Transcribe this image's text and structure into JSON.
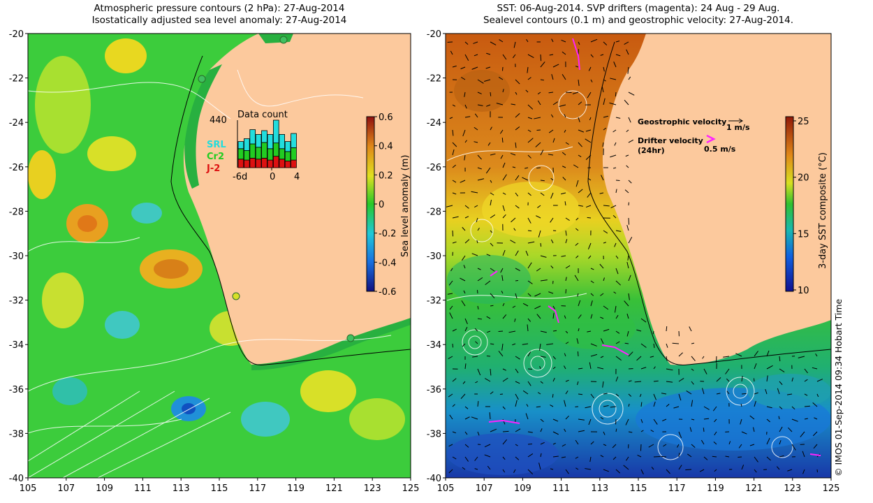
{
  "left_panel": {
    "title_line1": "Atmospheric pressure contours (2 hPa): 27-Aug-2014",
    "title_line2": "Isostatically adjusted sea level anomaly: 27-Aug-2014",
    "colorbar_label": "Sea level anomaly (m)",
    "colorbar_ticks": [
      "0.6",
      "0.4",
      "0.2",
      "0",
      "-0.2",
      "-0.4",
      "-0.6"
    ],
    "inset": {
      "title": "Data count",
      "max_label": "440",
      "x_ticks": [
        "-6d",
        "0",
        "4"
      ],
      "legend": [
        {
          "label": "SRL",
          "color": "#22dddd"
        },
        {
          "label": "Cr2",
          "color": "#22cc22"
        },
        {
          "label": "J-2",
          "color": "#dd1111"
        }
      ],
      "bars": [
        {
          "j2": 0.18,
          "cr2": 0.22,
          "srl": 0.15
        },
        {
          "j2": 0.16,
          "cr2": 0.2,
          "srl": 0.25
        },
        {
          "j2": 0.2,
          "cr2": 0.3,
          "srl": 0.3
        },
        {
          "j2": 0.18,
          "cr2": 0.25,
          "srl": 0.27
        },
        {
          "j2": 0.2,
          "cr2": 0.33,
          "srl": 0.25
        },
        {
          "j2": 0.16,
          "cr2": 0.24,
          "srl": 0.3
        },
        {
          "j2": 0.24,
          "cr2": 0.28,
          "srl": 0.48
        },
        {
          "j2": 0.18,
          "cr2": 0.22,
          "srl": 0.3
        },
        {
          "j2": 0.14,
          "cr2": 0.2,
          "srl": 0.21
        },
        {
          "j2": 0.16,
          "cr2": 0.26,
          "srl": 0.3
        }
      ]
    }
  },
  "right_panel": {
    "title_line1": "SST: 06-Aug-2014. SVP drifters (magenta): 24 Aug - 29 Aug.",
    "title_line2": "Sealevel contours (0.1 m) and geostrophic velocity: 27-Aug-2014.",
    "colorbar_label": "3-day SST composite (°C)",
    "colorbar_ticks": [
      "25",
      "20",
      "15",
      "10"
    ],
    "legend": {
      "geostrophic": "Geostrophic velocity",
      "geo_scale": "1 m/s",
      "drifter_line1": "Drifter velocity",
      "drifter_line2": "(24hr)",
      "drifter_scale": "0.5 m/s"
    }
  },
  "axes": {
    "y_ticks": [
      "-20",
      "-22",
      "-24",
      "-26",
      "-28",
      "-30",
      "-32",
      "-34",
      "-36",
      "-38",
      "-40"
    ],
    "x_ticks": [
      "105",
      "107",
      "109",
      "111",
      "113",
      "115",
      "117",
      "119",
      "121",
      "123",
      "125"
    ]
  },
  "credit": "© IMOS 01-Sep-2014 09:34 Hobart Time",
  "colors": {
    "land": "#fcc99d",
    "ocean_green": "#3ccc3c",
    "warm": "#d27a19",
    "accent_magenta": "#ff22ff"
  }
}
